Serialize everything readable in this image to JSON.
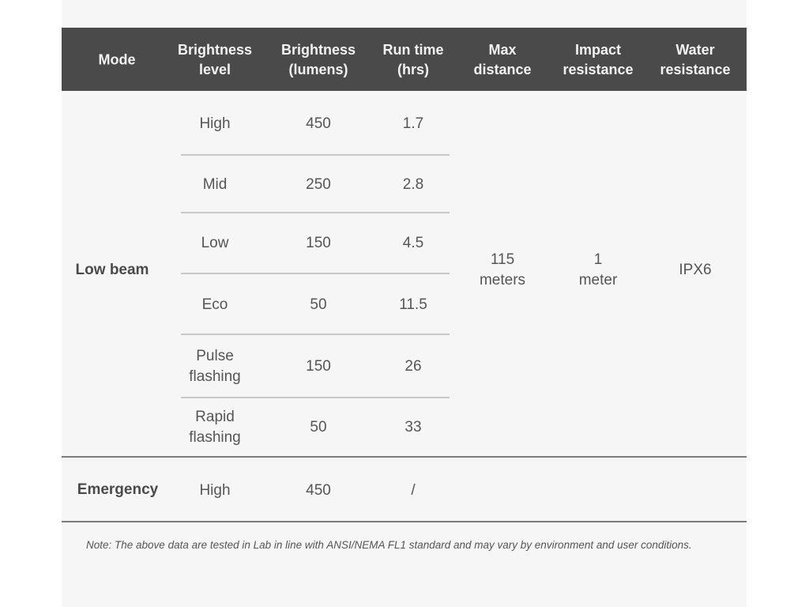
{
  "headers": [
    "Mode",
    "Brightness\nlevel",
    "Brightness\n(lumens)",
    "Run time\n(hrs)",
    "Max\ndistance",
    "Impact\nresistance",
    "Water\nresistance"
  ],
  "low_beam": {
    "mode": "Low beam",
    "rows": [
      {
        "level": "High",
        "lumens": "450",
        "runtime": "1.7"
      },
      {
        "level": "Mid",
        "lumens": "250",
        "runtime": "2.8"
      },
      {
        "level": "Low",
        "lumens": "150",
        "runtime": "4.5"
      },
      {
        "level": "Eco",
        "lumens": "50",
        "runtime": "11.5"
      },
      {
        "level": "Pulse\nflashing",
        "lumens": "150",
        "runtime": "26"
      },
      {
        "level": "Rapid\nflashing",
        "lumens": "50",
        "runtime": "33"
      }
    ],
    "max_distance": "115\nmeters",
    "impact_resistance": "1\nmeter",
    "water_resistance": "IPX6"
  },
  "emergency": {
    "mode": "Emergency",
    "level": "High",
    "lumens": "450",
    "runtime": "/"
  },
  "note": "Note: The above data are tested in Lab in line with ANSI/NEMA FL1 standard and may vary by environment and user conditions.",
  "colors": {
    "header_bg": "#4a4a4a",
    "panel_bg": "#f6f6f6",
    "text": "#555555"
  }
}
